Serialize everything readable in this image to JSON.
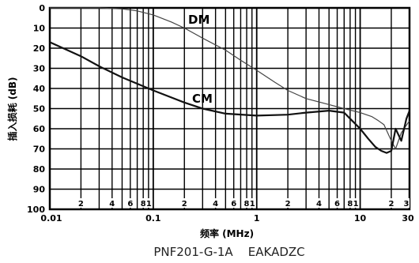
{
  "chart_data": {
    "type": "line",
    "title": "PNF201-G-1A    EAKADZC",
    "xlabel": "频率 (MHz)",
    "ylabel": "插入损耗 (dB)",
    "xscale": "log",
    "xlim": [
      0.01,
      30
    ],
    "ylim": [
      100,
      0
    ],
    "y_ticks": [
      "0",
      "10",
      "20",
      "30",
      "40",
      "50",
      "60",
      "70",
      "80",
      "90",
      "100"
    ],
    "x_major_ticks": [
      "0.01",
      "0.1",
      "1",
      "10",
      "30"
    ],
    "x_minor_ticks": [
      "2",
      "4",
      "6",
      "8",
      "1",
      "2",
      "4",
      "6",
      "8",
      "1",
      "2",
      "4",
      "6",
      "8",
      "1",
      "2",
      "3"
    ],
    "grid": true,
    "series": [
      {
        "name": "DM",
        "x": [
          0.01,
          0.03,
          0.05,
          0.07,
          0.1,
          0.15,
          0.2,
          0.3,
          0.5,
          0.7,
          1,
          1.5,
          2,
          3,
          5,
          7,
          10,
          13,
          15,
          17,
          20,
          22,
          25,
          30
        ],
        "y": [
          0,
          0,
          0.5,
          1.5,
          3.5,
          7,
          10,
          15,
          21,
          26,
          31,
          37,
          41,
          45,
          48,
          50,
          52,
          54,
          56,
          58,
          66,
          70,
          62,
          56
        ]
      },
      {
        "name": "CM",
        "x": [
          0.01,
          0.02,
          0.03,
          0.05,
          0.1,
          0.2,
          0.3,
          0.5,
          1,
          2,
          3,
          5,
          7,
          8,
          10,
          12,
          14,
          16,
          18,
          20,
          22,
          25,
          28,
          30
        ],
        "y": [
          17,
          24,
          29,
          34.5,
          41,
          47,
          50,
          52.5,
          53.5,
          53,
          52,
          51,
          52,
          55,
          60,
          65,
          69,
          71,
          72,
          71,
          60,
          66,
          55,
          51
        ]
      }
    ]
  }
}
